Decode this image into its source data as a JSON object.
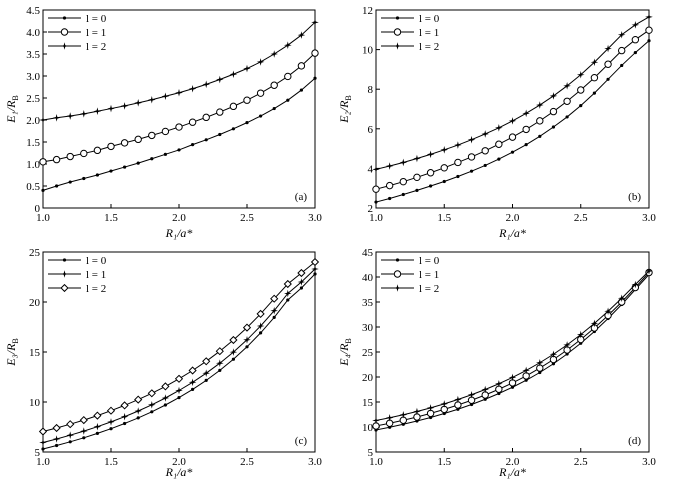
{
  "chart_data": [
    {
      "type": "line",
      "panel_label": "(a)",
      "ylabel": "E₁/R_B",
      "xlabel": "R₁/a*",
      "xlim": [
        1.0,
        3.0
      ],
      "ylim": [
        0,
        4.5
      ],
      "xticks": [
        "1.0",
        "1.5",
        "2.0",
        "2.5",
        "3.0"
      ],
      "yticks": [
        "0",
        "0.5",
        "1.0",
        "1.5",
        "2.0",
        "2.5",
        "3.0",
        "3.5",
        "4.0",
        "4.5"
      ],
      "legend_position": "top-left",
      "x": [
        1.0,
        1.1,
        1.2,
        1.3,
        1.4,
        1.5,
        1.6,
        1.7,
        1.8,
        1.9,
        2.0,
        2.1,
        2.2,
        2.3,
        2.4,
        2.5,
        2.6,
        2.7,
        2.8,
        2.9,
        3.0
      ],
      "series": [
        {
          "name": "l = 0",
          "marker": "dot",
          "values": [
            0.4,
            0.5,
            0.59,
            0.67,
            0.75,
            0.84,
            0.93,
            1.02,
            1.12,
            1.22,
            1.32,
            1.44,
            1.55,
            1.67,
            1.8,
            1.94,
            2.09,
            2.26,
            2.45,
            2.68,
            2.95
          ]
        },
        {
          "name": "l = 1",
          "marker": "circle",
          "values": [
            1.05,
            1.1,
            1.17,
            1.24,
            1.31,
            1.4,
            1.48,
            1.56,
            1.65,
            1.74,
            1.84,
            1.95,
            2.06,
            2.18,
            2.31,
            2.45,
            2.61,
            2.79,
            2.99,
            3.23,
            3.52
          ]
        },
        {
          "name": "l = 2",
          "marker": "star",
          "values": [
            2.0,
            2.05,
            2.09,
            2.14,
            2.2,
            2.26,
            2.32,
            2.39,
            2.46,
            2.54,
            2.62,
            2.71,
            2.81,
            2.92,
            3.04,
            3.17,
            3.32,
            3.5,
            3.7,
            3.93,
            4.22
          ]
        }
      ]
    },
    {
      "type": "line",
      "panel_label": "(b)",
      "ylabel": "E₂/R_B",
      "xlabel": "R₁/a*",
      "xlim": [
        1.0,
        3.0
      ],
      "ylim": [
        2,
        12
      ],
      "xticks": [
        "1.0",
        "1.5",
        "2.0",
        "2.5",
        "3.0"
      ],
      "yticks": [
        "2",
        "4",
        "6",
        "8",
        "10",
        "12"
      ],
      "legend_position": "top-left",
      "x": [
        1.0,
        1.1,
        1.2,
        1.3,
        1.4,
        1.5,
        1.6,
        1.7,
        1.8,
        1.9,
        2.0,
        2.1,
        2.2,
        2.3,
        2.4,
        2.5,
        2.6,
        2.7,
        2.8,
        2.9,
        3.0
      ],
      "series": [
        {
          "name": "l = 0",
          "marker": "dot",
          "values": [
            2.3,
            2.48,
            2.68,
            2.89,
            3.11,
            3.34,
            3.59,
            3.86,
            4.15,
            4.47,
            4.82,
            5.2,
            5.62,
            6.09,
            6.6,
            7.17,
            7.8,
            8.5,
            9.2,
            9.85,
            10.45
          ]
        },
        {
          "name": "l = 1",
          "marker": "circle",
          "values": [
            2.95,
            3.13,
            3.33,
            3.55,
            3.78,
            4.03,
            4.3,
            4.58,
            4.89,
            5.22,
            5.58,
            5.97,
            6.4,
            6.87,
            7.39,
            7.96,
            8.58,
            9.26,
            9.95,
            10.5,
            10.98
          ]
        },
        {
          "name": "l = 2",
          "marker": "star",
          "values": [
            3.95,
            4.12,
            4.3,
            4.5,
            4.71,
            4.94,
            5.18,
            5.45,
            5.74,
            6.05,
            6.4,
            6.78,
            7.2,
            7.66,
            8.17,
            8.73,
            9.36,
            10.05,
            10.75,
            11.25,
            11.65
          ]
        }
      ]
    },
    {
      "type": "line",
      "panel_label": "(c)",
      "ylabel": "E₃/R_B",
      "xlabel": "R₁/a*",
      "xlim": [
        1.0,
        3.0
      ],
      "ylim": [
        5,
        25
      ],
      "xticks": [
        "1.0",
        "1.5",
        "2.0",
        "2.5",
        "3.0"
      ],
      "yticks": [
        "5",
        "10",
        "15",
        "20",
        "25"
      ],
      "legend_position": "top-left",
      "x": [
        1.0,
        1.1,
        1.2,
        1.3,
        1.4,
        1.5,
        1.6,
        1.7,
        1.8,
        1.9,
        2.0,
        2.1,
        2.2,
        2.3,
        2.4,
        2.5,
        2.6,
        2.7,
        2.8,
        2.9,
        3.0
      ],
      "series": [
        {
          "name": "l = 0",
          "marker": "dot",
          "values": [
            5.3,
            5.65,
            6.02,
            6.42,
            6.86,
            7.33,
            7.85,
            8.41,
            9.02,
            9.7,
            10.44,
            11.26,
            12.16,
            13.16,
            14.28,
            15.52,
            16.91,
            18.46,
            20.2,
            21.4,
            22.8
          ]
        },
        {
          "name": "l = 1",
          "marker": "star",
          "values": [
            5.95,
            6.3,
            6.68,
            7.09,
            7.53,
            8.01,
            8.53,
            9.1,
            9.72,
            10.4,
            11.15,
            11.97,
            12.88,
            13.88,
            14.99,
            16.22,
            17.6,
            19.13,
            20.85,
            22.0,
            23.3
          ]
        },
        {
          "name": "l = 2",
          "marker": "diamond",
          "values": [
            7.05,
            7.4,
            7.78,
            8.19,
            8.64,
            9.13,
            9.66,
            10.24,
            10.87,
            11.56,
            12.32,
            13.15,
            14.07,
            15.08,
            16.2,
            17.44,
            18.81,
            20.33,
            21.8,
            22.9,
            24.0
          ]
        }
      ]
    },
    {
      "type": "line",
      "panel_label": "(d)",
      "ylabel": "E₄/R_B",
      "xlabel": "R₁/a*",
      "xlim": [
        1.0,
        3.0
      ],
      "ylim": [
        5,
        45
      ],
      "xticks": [
        "1.0",
        "1.5",
        "2.0",
        "2.5",
        "3.0"
      ],
      "yticks": [
        "5",
        "10",
        "15",
        "20",
        "25",
        "30",
        "35",
        "40",
        "45"
      ],
      "legend_position": "top-left",
      "x": [
        1.0,
        1.1,
        1.2,
        1.3,
        1.4,
        1.5,
        1.6,
        1.7,
        1.8,
        1.9,
        2.0,
        2.1,
        2.2,
        2.3,
        2.4,
        2.5,
        2.6,
        2.7,
        2.8,
        2.9,
        3.0
      ],
      "series": [
        {
          "name": "l = 0",
          "marker": "dot",
          "values": [
            9.4,
            9.95,
            10.55,
            11.2,
            11.9,
            12.7,
            13.55,
            14.5,
            15.55,
            16.7,
            17.95,
            19.35,
            20.9,
            22.65,
            24.6,
            26.75,
            29.1,
            31.7,
            34.5,
            37.5,
            40.5
          ]
        },
        {
          "name": "l = 1",
          "marker": "circle",
          "values": [
            10.2,
            10.75,
            11.35,
            12.0,
            12.72,
            13.52,
            14.4,
            15.35,
            16.4,
            17.55,
            18.82,
            20.22,
            21.78,
            23.5,
            25.4,
            27.5,
            29.8,
            32.3,
            35.0,
            37.9,
            40.9
          ]
        },
        {
          "name": "l = 2",
          "marker": "star",
          "values": [
            11.3,
            11.85,
            12.45,
            13.1,
            13.82,
            14.62,
            15.5,
            16.45,
            17.5,
            18.65,
            19.92,
            21.32,
            22.85,
            24.55,
            26.42,
            28.48,
            30.72,
            33.15,
            35.75,
            38.5,
            41.2
          ]
        }
      ]
    }
  ]
}
